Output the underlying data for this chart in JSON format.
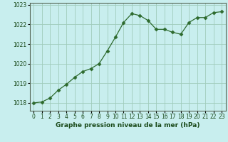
{
  "x": [
    0,
    1,
    2,
    3,
    4,
    5,
    6,
    7,
    8,
    9,
    10,
    11,
    12,
    13,
    14,
    15,
    16,
    17,
    18,
    19,
    20,
    21,
    22,
    23
  ],
  "y": [
    1018.0,
    1018.05,
    1018.25,
    1018.65,
    1018.95,
    1019.3,
    1019.6,
    1019.75,
    1020.0,
    1020.65,
    1021.35,
    1022.1,
    1022.55,
    1022.45,
    1022.2,
    1021.75,
    1021.75,
    1021.6,
    1021.5,
    1022.1,
    1022.35,
    1022.35,
    1022.6,
    1022.65
  ],
  "line_color": "#2d6a2d",
  "marker": "D",
  "marker_size": 2.5,
  "bg_color": "#c8eeee",
  "grid_color": "#a0ccbb",
  "xlabel": "Graphe pression niveau de la mer (hPa)",
  "xlabel_color": "#1a4a1a",
  "ylabel_ticks": [
    1018,
    1019,
    1020,
    1021,
    1022,
    1023
  ],
  "ylim": [
    1017.6,
    1023.1
  ],
  "xlim": [
    -0.5,
    23.5
  ],
  "tick_label_color": "#1a4a1a",
  "spine_color": "#556655",
  "tick_fontsize": 5.5,
  "xlabel_fontsize": 6.5
}
